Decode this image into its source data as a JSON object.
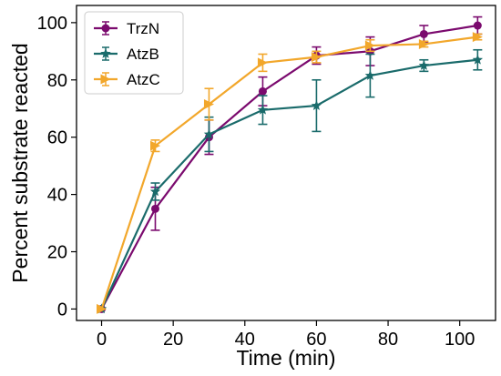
{
  "chart_data": {
    "type": "line",
    "title": "",
    "xlabel": "Time (min)",
    "ylabel": "Percent substrate reacted",
    "xlim": [
      -7,
      110
    ],
    "ylim": [
      -4,
      106
    ],
    "xticks": [
      0,
      20,
      40,
      60,
      80,
      100
    ],
    "yticks": [
      0,
      20,
      40,
      60,
      80,
      100
    ],
    "grid": false,
    "legend": "top-left",
    "series": [
      {
        "name": "TrzN",
        "color": "#7b0a6e",
        "marker": "circle",
        "x": [
          0,
          15,
          30,
          45,
          60,
          75,
          90,
          105
        ],
        "y": [
          0,
          35,
          60,
          76,
          88.5,
          90,
          96,
          99
        ],
        "err": [
          0,
          7.5,
          6,
          5,
          3,
          5,
          3,
          3
        ]
      },
      {
        "name": "AtzB",
        "color": "#1a6b6b",
        "marker": "star",
        "x": [
          0,
          15,
          30,
          45,
          60,
          75,
          90,
          105
        ],
        "y": [
          0,
          41,
          61,
          69.5,
          71,
          81.5,
          85,
          87
        ],
        "err": [
          0,
          3,
          6,
          5,
          9,
          7.5,
          2,
          3.5
        ]
      },
      {
        "name": "AtzC",
        "color": "#f2a72b",
        "marker": "triangle-right",
        "x": [
          0,
          15,
          30,
          45,
          60,
          75,
          90,
          105
        ],
        "y": [
          0,
          57,
          71.5,
          86,
          88,
          92,
          92.5,
          95
        ],
        "err": [
          0,
          2,
          5.5,
          3,
          2,
          2,
          1,
          1
        ]
      }
    ]
  }
}
